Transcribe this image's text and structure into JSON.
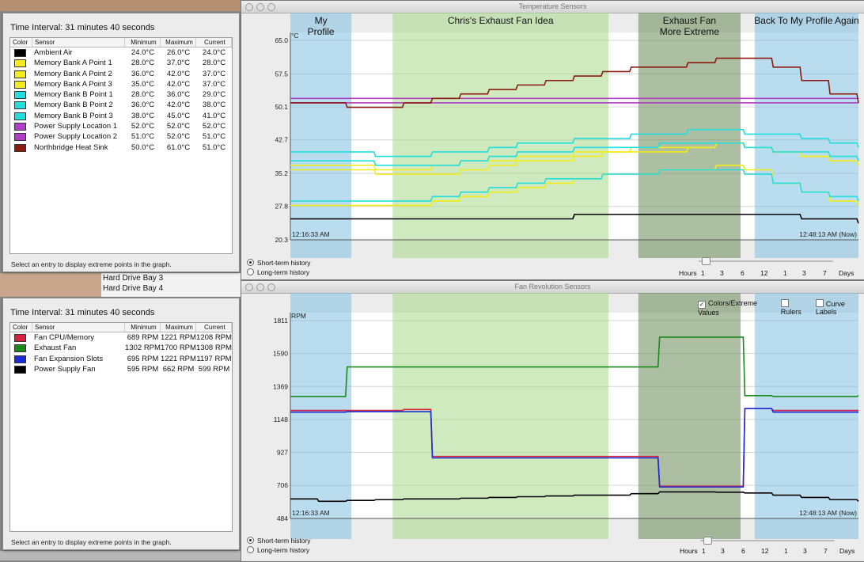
{
  "desktop": {
    "list_items": [
      "Hard Drive Bay 3",
      "Hard Drive Bay 4"
    ]
  },
  "temp_panel": {
    "interval": "Time Interval: 31 minutes 40 seconds",
    "columns": [
      "Color",
      "Sensor",
      "Minimum",
      "Maximum",
      "Current"
    ],
    "rows": [
      {
        "color": "#000000",
        "name": "Ambient Air",
        "min": "24.0°C",
        "max": "26.0°C",
        "cur": "24.0°C"
      },
      {
        "color": "#f3ec1a",
        "name": "Memory Bank A Point 1",
        "min": "28.0°C",
        "max": "37.0°C",
        "cur": "28.0°C"
      },
      {
        "color": "#f3ec1a",
        "name": "Memory Bank A Point 2",
        "min": "36.0°C",
        "max": "42.0°C",
        "cur": "37.0°C"
      },
      {
        "color": "#f3ec1a",
        "name": "Memory Bank A Point 3",
        "min": "35.0°C",
        "max": "42.0°C",
        "cur": "37.0°C"
      },
      {
        "color": "#22dede",
        "name": "Memory Bank B Point 1",
        "min": "28.0°C",
        "max": "36.0°C",
        "cur": "29.0°C"
      },
      {
        "color": "#22dede",
        "name": "Memory Bank B Point 2",
        "min": "36.0°C",
        "max": "42.0°C",
        "cur": "38.0°C"
      },
      {
        "color": "#22dede",
        "name": "Memory Bank B Point 3",
        "min": "38.0°C",
        "max": "45.0°C",
        "cur": "41.0°C"
      },
      {
        "color": "#b13cc6",
        "name": "Power Supply Location 1",
        "min": "52.0°C",
        "max": "52.0°C",
        "cur": "52.0°C"
      },
      {
        "color": "#b13cc6",
        "name": "Power Supply Location 2",
        "min": "51.0°C",
        "max": "52.0°C",
        "cur": "51.0°C"
      },
      {
        "color": "#8b1a10",
        "name": "Northbridge Heat Sink",
        "min": "50.0°C",
        "max": "61.0°C",
        "cur": "51.0°C"
      }
    ],
    "hint": "Select an entry to display extreme points in the graph."
  },
  "fan_panel": {
    "interval": "Time Interval: 31 minutes 40 seconds",
    "columns": [
      "Color",
      "Sensor",
      "Minimum",
      "Maximum",
      "Current"
    ],
    "rows": [
      {
        "color": "#d8213f",
        "name": "Fan CPU/Memory",
        "min": "689 RPM",
        "max": "1221 RPM",
        "cur": "1208 RPM"
      },
      {
        "color": "#1a8a1a",
        "name": "Exhaust Fan",
        "min": "1302 RPM",
        "max": "1700 RPM",
        "cur": "1308 RPM"
      },
      {
        "color": "#1a2ed8",
        "name": "Fan Expansion Slots",
        "min": "695 RPM",
        "max": "1221 RPM",
        "cur": "1197 RPM"
      },
      {
        "color": "#000000",
        "name": "Power Supply Fan",
        "min": "595 RPM",
        "max": "662 RPM",
        "cur": "599 RPM"
      }
    ],
    "hint": "Select an entry to display extreme points in the graph."
  },
  "temp_window": {
    "title": "Temperature Sensors",
    "unit": "°C",
    "start_time": "12:16:33 AM",
    "end_time": "12:48:13 AM (Now)",
    "radio_short": "Short-term history",
    "radio_long": "Long-term history",
    "scale": [
      "Hours",
      "1",
      "3",
      "6",
      "12",
      "1",
      "3",
      "7",
      "Days"
    ]
  },
  "fan_window": {
    "title": "Fan Revolution Sensors",
    "unit": "RPM",
    "start_time": "12:16:33 AM",
    "end_time": "12:48:13 AM (Now)",
    "radio_short": "Short-term history",
    "radio_long": "Long-term history",
    "scale": [
      "Hours",
      "1",
      "3",
      "6",
      "12",
      "1",
      "3",
      "7",
      "Days"
    ],
    "check_colors": "Colors/Extreme Values",
    "check_rulers": "Rulers",
    "check_curves": "Curve Labels"
  },
  "annotations": [
    {
      "label": "My\nProfile",
      "color": "#7fbfe0",
      "t0": 0,
      "t1": 4.3
    },
    {
      "label": "Chris's Exhaust Fan Idea",
      "color": "#a8d888",
      "t0": 7.2,
      "t1": 22.4
    },
    {
      "label": "Exhaust Fan\nMore Extreme",
      "color": "#6a8a55",
      "t0": 24.5,
      "t1": 31.7
    },
    {
      "label": "Back To My Profile Again",
      "color": "#7fbfe0",
      "t0": 32.7,
      "t1": 40.0
    }
  ],
  "chart_data": [
    {
      "type": "line",
      "title": "Temperature Sensors",
      "ylabel": "°C",
      "ylim": [
        20.3,
        65.0
      ],
      "yticks": [
        "65.0",
        "57.5",
        "50.1",
        "42.7",
        "35.2",
        "27.8",
        "20.3"
      ],
      "x": [
        0,
        2,
        4,
        6,
        8,
        10,
        12,
        14,
        16,
        18,
        20,
        22,
        24,
        26,
        28,
        30,
        32,
        34,
        36,
        38,
        40
      ],
      "series": [
        {
          "name": "Ambient Air",
          "color": "#000000",
          "values": [
            25,
            25,
            25,
            25,
            25,
            25,
            25,
            25,
            25,
            25,
            26,
            26,
            26,
            26,
            26,
            26,
            26,
            26,
            25,
            25,
            24
          ]
        },
        {
          "name": "Memory Bank A Point 1",
          "color": "#f3ec1a",
          "values": [
            28,
            28,
            28,
            28,
            28,
            29,
            30,
            31,
            32,
            33,
            34,
            35,
            35,
            36,
            36,
            37,
            36,
            33,
            31,
            29,
            28
          ]
        },
        {
          "name": "Memory Bank A Point 2",
          "color": "#f3ec1a",
          "values": [
            37,
            37,
            37,
            36,
            36,
            37,
            38,
            38,
            39,
            39,
            40,
            40,
            41,
            41,
            41,
            42,
            41,
            40,
            39,
            38,
            37
          ]
        },
        {
          "name": "Memory Bank A Point 3",
          "color": "#f3ec1a",
          "values": [
            36,
            36,
            36,
            35,
            35,
            35,
            36,
            37,
            38,
            38,
            39,
            40,
            40,
            40,
            41,
            42,
            41,
            40,
            39,
            38,
            37
          ]
        },
        {
          "name": "Memory Bank B Point 1",
          "color": "#22dede",
          "values": [
            29,
            29,
            29,
            29,
            29,
            30,
            31,
            32,
            33,
            34,
            34,
            35,
            35,
            36,
            36,
            36,
            35,
            33,
            31,
            30,
            29
          ]
        },
        {
          "name": "Memory Bank B Point 2",
          "color": "#22dede",
          "values": [
            38,
            38,
            38,
            37,
            37,
            37,
            38,
            39,
            40,
            40,
            41,
            41,
            41,
            42,
            42,
            42,
            41,
            40,
            40,
            39,
            38
          ]
        },
        {
          "name": "Memory Bank B Point 3",
          "color": "#22dede",
          "values": [
            40,
            40,
            40,
            39,
            39,
            40,
            40,
            41,
            42,
            42,
            43,
            43,
            44,
            44,
            45,
            45,
            44,
            44,
            43,
            42,
            41
          ]
        },
        {
          "name": "Power Supply Location 1",
          "color": "#b13cc6",
          "values": [
            52,
            52,
            52,
            52,
            52,
            52,
            52,
            52,
            52,
            52,
            52,
            52,
            52,
            52,
            52,
            52,
            52,
            52,
            52,
            52,
            52
          ]
        },
        {
          "name": "Power Supply Location 2",
          "color": "#b13cc6",
          "values": [
            51,
            51,
            51,
            51,
            51,
            51,
            51,
            51,
            51,
            51,
            51,
            51,
            51,
            51,
            51,
            51,
            51,
            51,
            51,
            51,
            51
          ]
        },
        {
          "name": "Northbridge Heat Sink",
          "color": "#8b1a10",
          "values": [
            51,
            51,
            50,
            50,
            51,
            52,
            53,
            54,
            55,
            56,
            57,
            58,
            59,
            59,
            60,
            61,
            61,
            59,
            56,
            53,
            51
          ]
        }
      ]
    },
    {
      "type": "line",
      "title": "Fan Revolution Sensors",
      "ylabel": "RPM",
      "ylim": [
        484,
        1811
      ],
      "yticks": [
        "1811",
        "1590",
        "1369",
        "1148",
        "927",
        "706",
        "484"
      ],
      "x": [
        0,
        2,
        4,
        6,
        8,
        10,
        12,
        14,
        16,
        18,
        20,
        22,
        24,
        26,
        28,
        30,
        32,
        34,
        36,
        38,
        40
      ],
      "series": [
        {
          "name": "Fan CPU/Memory",
          "color": "#d8213f",
          "values": [
            1208,
            1208,
            1208,
            1208,
            1215,
            900,
            900,
            900,
            900,
            900,
            900,
            900,
            900,
            700,
            700,
            700,
            1221,
            1208,
            1208,
            1208,
            1208
          ]
        },
        {
          "name": "Exhaust Fan",
          "color": "#1a8a1a",
          "values": [
            1302,
            1302,
            1500,
            1500,
            1500,
            1500,
            1500,
            1500,
            1500,
            1500,
            1500,
            1500,
            1500,
            1700,
            1700,
            1700,
            1308,
            1302,
            1302,
            1302,
            1308
          ]
        },
        {
          "name": "Fan Expansion Slots",
          "color": "#1a2ed8",
          "values": [
            1197,
            1197,
            1200,
            1200,
            1200,
            890,
            890,
            890,
            890,
            890,
            890,
            890,
            890,
            695,
            695,
            695,
            1221,
            1197,
            1197,
            1197,
            1197
          ]
        },
        {
          "name": "Power Supply Fan",
          "color": "#000000",
          "values": [
            615,
            599,
            605,
            610,
            615,
            615,
            620,
            625,
            630,
            635,
            640,
            640,
            650,
            662,
            662,
            660,
            655,
            640,
            625,
            610,
            599
          ]
        }
      ]
    }
  ]
}
